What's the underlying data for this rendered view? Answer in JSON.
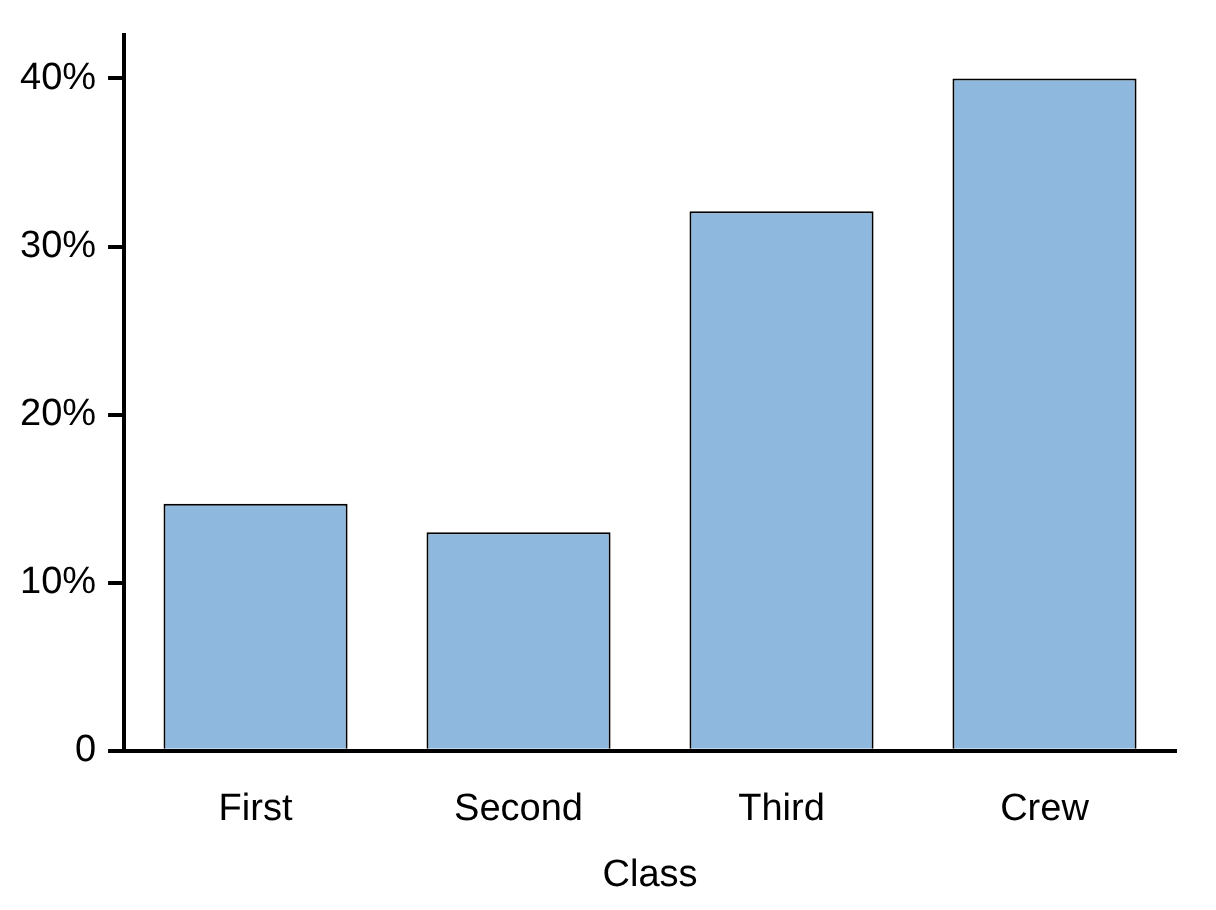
{
  "chart_data": {
    "type": "bar",
    "xlabel": "Class",
    "categories": [
      "First",
      "Second",
      "Third",
      "Crew"
    ],
    "values": [
      14.7,
      13.0,
      32.1,
      40.0
    ],
    "color": "#8fb8de",
    "ylim": [
      0,
      42.6
    ],
    "yticks": [
      {
        "value": 0,
        "label": "0"
      },
      {
        "value": 10,
        "label": "10%"
      },
      {
        "value": 20,
        "label": "20%"
      },
      {
        "value": 30,
        "label": "30%"
      },
      {
        "value": 40,
        "label": "40%"
      }
    ],
    "grid": false,
    "legend": false
  }
}
